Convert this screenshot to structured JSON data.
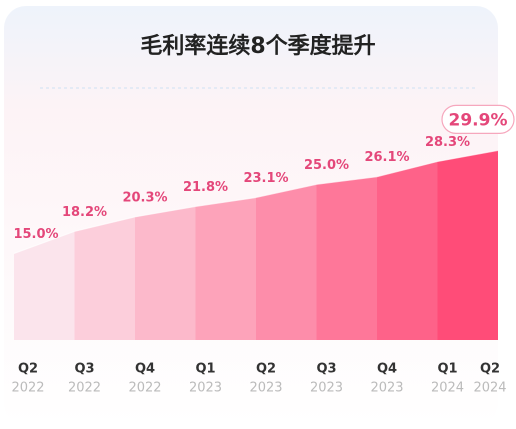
{
  "chart_data": {
    "type": "stepped-area",
    "title": "毛利率连续8个季度提升",
    "categories": [
      "Q2",
      "Q3",
      "Q4",
      "Q1",
      "Q2",
      "Q3",
      "Q4",
      "Q1",
      "Q2"
    ],
    "years": [
      "2022",
      "2022",
      "2022",
      "2023",
      "2023",
      "2023",
      "2023",
      "2024",
      "2024"
    ],
    "values": [
      15.0,
      18.2,
      20.3,
      21.8,
      23.1,
      25.0,
      26.1,
      28.3,
      29.9
    ],
    "value_labels": [
      "15.0%",
      "18.2%",
      "20.3%",
      "21.8%",
      "23.1%",
      "25.0%",
      "26.1%",
      "28.3%",
      "29.9%"
    ],
    "ylim": [
      2.5,
      34
    ],
    "color_range": [
      "#fbe4ec",
      "#ff4c78"
    ],
    "label_color": "#e4477a"
  }
}
